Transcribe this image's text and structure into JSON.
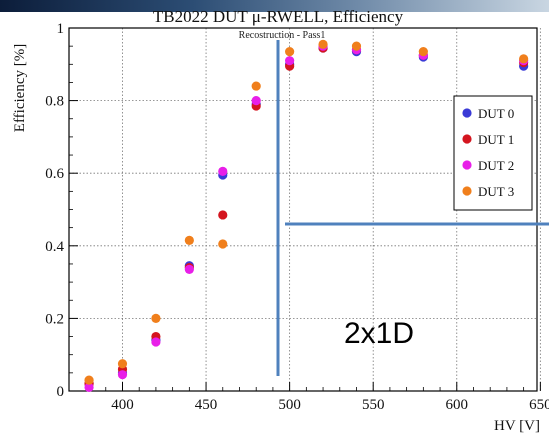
{
  "chart_data": {
    "type": "scatter",
    "title": "TB2022 DUT μ-RWELL, Efficiency",
    "subtitle": "Recostruction - Pass1",
    "xlabel": "HV [V]",
    "ylabel": "Efficiency [%]",
    "xlim": [
      368,
      648
    ],
    "ylim": [
      0,
      1
    ],
    "x_ticks": [
      "400",
      "450",
      "500",
      "550",
      "600",
      "650"
    ],
    "y_ticks": [
      "0",
      "0.2",
      "0.4",
      "0.6",
      "0.8",
      "1"
    ],
    "grid": true,
    "legend_position": "top-right",
    "series": [
      {
        "name": "DUT 0",
        "color": "#3a3ad6",
        "points": [
          [
            380,
            0.02
          ],
          [
            400,
            0.05
          ],
          [
            420,
            0.14
          ],
          [
            440,
            0.345
          ],
          [
            460,
            0.595
          ],
          [
            480,
            0.79
          ],
          [
            500,
            0.9
          ],
          [
            520,
            0.945
          ],
          [
            540,
            0.935
          ],
          [
            580,
            0.92
          ],
          [
            640,
            0.895
          ]
        ]
      },
      {
        "name": "DUT 1",
        "color": "#d4151f",
        "points": [
          [
            380,
            0.02
          ],
          [
            400,
            0.06
          ],
          [
            420,
            0.15
          ],
          [
            440,
            0.34
          ],
          [
            460,
            0.485
          ],
          [
            480,
            0.785
          ],
          [
            500,
            0.895
          ],
          [
            520,
            0.945
          ],
          [
            540,
            0.94
          ],
          [
            580,
            0.925
          ],
          [
            640,
            0.905
          ]
        ]
      },
      {
        "name": "DUT 2",
        "color": "#e81fe8",
        "points": [
          [
            380,
            0.01
          ],
          [
            400,
            0.045
          ],
          [
            420,
            0.135
          ],
          [
            440,
            0.335
          ],
          [
            460,
            0.605
          ],
          [
            480,
            0.8
          ],
          [
            500,
            0.91
          ],
          [
            520,
            0.95
          ],
          [
            540,
            0.94
          ],
          [
            580,
            0.925
          ],
          [
            640,
            0.91
          ]
        ]
      },
      {
        "name": "DUT 3",
        "color": "#f07f1c",
        "points": [
          [
            380,
            0.03
          ],
          [
            400,
            0.075
          ],
          [
            420,
            0.2
          ],
          [
            440,
            0.415
          ],
          [
            460,
            0.405
          ],
          [
            480,
            0.84
          ],
          [
            500,
            0.935
          ],
          [
            520,
            0.955
          ],
          [
            540,
            0.95
          ],
          [
            580,
            0.935
          ],
          [
            640,
            0.915
          ]
        ]
      }
    ],
    "annotation": {
      "text": "2x1D",
      "line_color": "#4f81bd"
    }
  }
}
